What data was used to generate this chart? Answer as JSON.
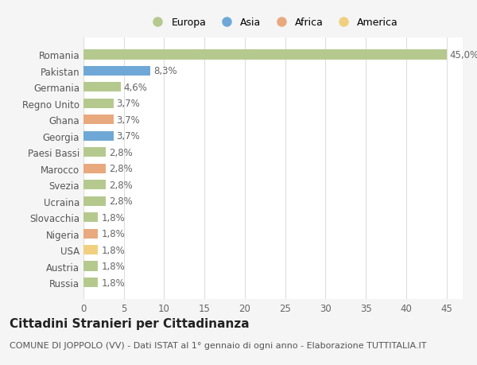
{
  "categories": [
    "Romania",
    "Pakistan",
    "Germania",
    "Regno Unito",
    "Ghana",
    "Georgia",
    "Paesi Bassi",
    "Marocco",
    "Svezia",
    "Ucraina",
    "Slovacchia",
    "Nigeria",
    "USA",
    "Austria",
    "Russia"
  ],
  "values": [
    45.0,
    8.3,
    4.6,
    3.7,
    3.7,
    3.7,
    2.8,
    2.8,
    2.8,
    2.8,
    1.8,
    1.8,
    1.8,
    1.8,
    1.8
  ],
  "labels": [
    "45,0%",
    "8,3%",
    "4,6%",
    "3,7%",
    "3,7%",
    "3,7%",
    "2,8%",
    "2,8%",
    "2,8%",
    "2,8%",
    "1,8%",
    "1,8%",
    "1,8%",
    "1,8%",
    "1,8%"
  ],
  "continents": [
    "Europa",
    "Asia",
    "Europa",
    "Europa",
    "Africa",
    "Asia",
    "Europa",
    "Africa",
    "Europa",
    "Europa",
    "Europa",
    "Africa",
    "America",
    "Europa",
    "Europa"
  ],
  "continent_colors": {
    "Europa": "#b5c98e",
    "Asia": "#6fa8d6",
    "Africa": "#e8a97e",
    "America": "#f0d080"
  },
  "legend_order": [
    "Europa",
    "Asia",
    "Africa",
    "America"
  ],
  "title": "Cittadini Stranieri per Cittadinanza",
  "subtitle": "COMUNE DI JOPPOLO (VV) - Dati ISTAT al 1° gennaio di ogni anno - Elaborazione TUTTITALIA.IT",
  "xlim": [
    0,
    47
  ],
  "xticks": [
    0,
    5,
    10,
    15,
    20,
    25,
    30,
    35,
    40,
    45
  ],
  "bg_color": "#f5f5f5",
  "bar_bg_color": "#ffffff",
  "label_fontsize": 8.5,
  "tick_fontsize": 8.5,
  "title_fontsize": 11,
  "subtitle_fontsize": 8
}
